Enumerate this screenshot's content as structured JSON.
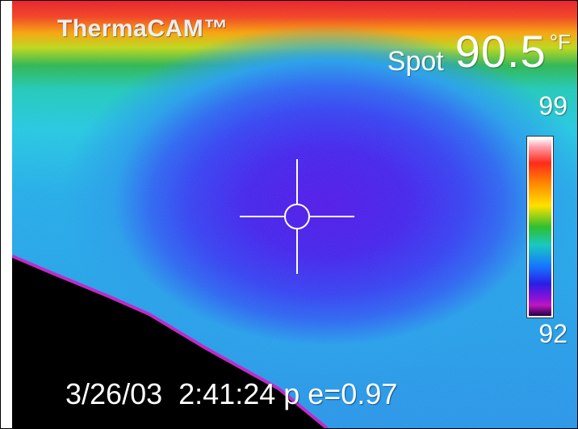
{
  "camera": {
    "brand": "ThermaCAM™"
  },
  "readout": {
    "spot_label": "Spot",
    "spot_value": "90.5",
    "unit": "°F"
  },
  "scale": {
    "max": "99",
    "min": "92"
  },
  "footer": {
    "date": "3/26/03",
    "time": "2:41:24 p",
    "emissivity": "e=0.97"
  },
  "colors": {
    "hot": "#e8141e",
    "cold": "#3d1bea",
    "background_object": "#000000"
  }
}
